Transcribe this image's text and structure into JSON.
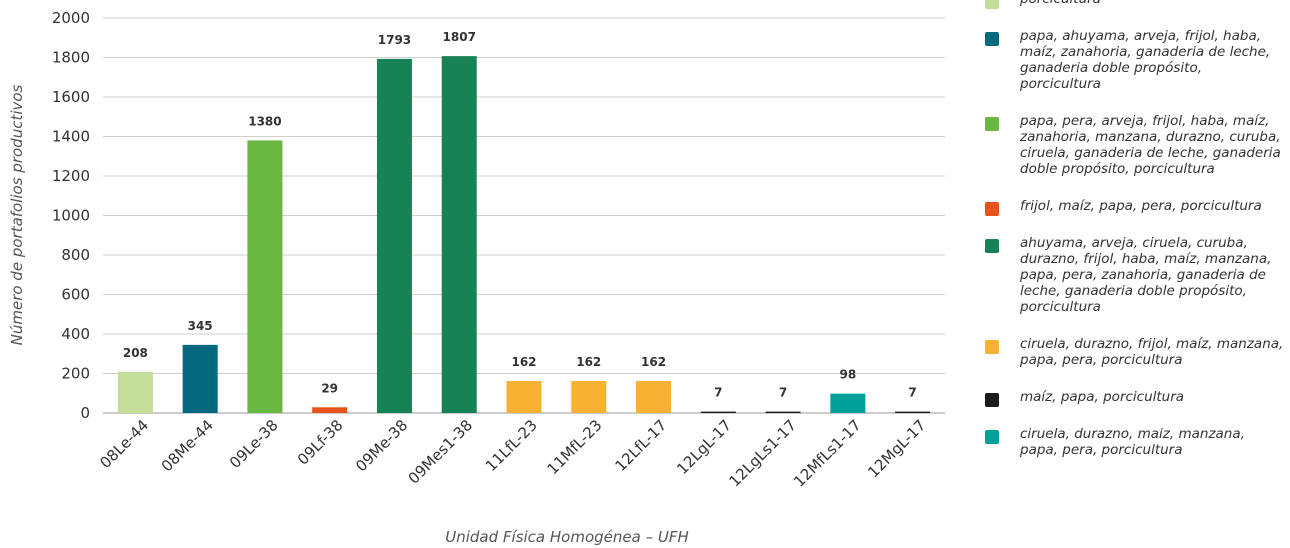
{
  "chart_data": {
    "type": "bar",
    "xlabel": "Unidad Física Homogénea – UFH",
    "ylabel": "Número de portafolios productivos",
    "ylim": [
      0,
      2000
    ],
    "yticks": [
      0,
      200,
      400,
      600,
      800,
      1000,
      1200,
      1400,
      1600,
      1800,
      2000
    ],
    "grid": true,
    "legend_position": "right",
    "categories": [
      "08Le-44",
      "08Me-44",
      "09Le-38",
      "09Lf-38",
      "09Me-38",
      "09Mes1-38",
      "11LfL-23",
      "11MfL-23",
      "12LfL-17",
      "12LgL-17",
      "12LgLs1-17",
      "12MfLs1-17",
      "12MgL-17"
    ],
    "values": [
      208,
      345,
      1380,
      29,
      1793,
      1807,
      162,
      162,
      162,
      7,
      7,
      98,
      7
    ],
    "data_labels": [
      "208",
      "345",
      "1380",
      "29",
      "1793",
      "1807",
      "162",
      "162",
      "162",
      "7",
      "7",
      "98",
      "7"
    ],
    "bar_colors": [
      "#c5dd9a",
      "#04697f",
      "#69b640",
      "#e8531d",
      "#188257",
      "#188257",
      "#f8b133",
      "#f8b133",
      "#f8b133",
      "#1c1c1c",
      "#1c1c1c",
      "#00a19a",
      "#1c1c1c"
    ],
    "legend": [
      {
        "color": "#c5dd9a",
        "label": "porcicultura"
      },
      {
        "color": "#04697f",
        "label": "papa, ahuyama, arveja, frijol, haba, maíz, zanahoria, ganaderia de leche, ganaderia doble propósito, porcicultura"
      },
      {
        "color": "#69b640",
        "label": "papa, pera, arveja, frijol, haba, maíz, zanahoria, manzana, durazno, curuba, ciruela, ganaderia de leche, ganaderia doble propósito, porcicultura"
      },
      {
        "color": "#e8531d",
        "label": "frijol, maíz, papa, pera, porcicultura"
      },
      {
        "color": "#188257",
        "label": "ahuyama, arveja, ciruela, curuba, durazno, frijol, haba, maíz, manzana, papa, pera, zanahoria, ganaderia de leche, ganaderia doble propósito, porcicultura"
      },
      {
        "color": "#f8b133",
        "label": "ciruela, durazno, frijol, maíz, manzana, papa, pera, porcicultura"
      },
      {
        "color": "#1c1c1c",
        "label": "maíz, papa, porcicultura"
      },
      {
        "color": "#00a19a",
        "label": "ciruela, durazno, maiz, manzana, papa, pera, porcicultura"
      }
    ]
  }
}
